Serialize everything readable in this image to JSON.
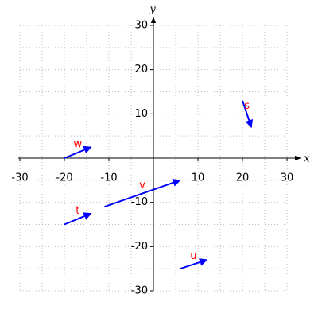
{
  "chart_data": {
    "type": "vector",
    "x_label": "x",
    "y_label": "y",
    "xlim": [
      -30,
      30
    ],
    "ylim": [
      -30,
      30
    ],
    "xticks": [
      -30,
      -20,
      -10,
      10,
      20,
      30
    ],
    "yticks": [
      -30,
      -20,
      -10,
      10,
      20,
      30
    ],
    "xgrid": [
      -30,
      -25,
      -20,
      -15,
      -10,
      -5,
      0,
      5,
      10,
      15,
      20,
      25,
      30
    ],
    "ygrid": [
      -30,
      -25,
      -20,
      -15,
      -10,
      -5,
      0,
      5,
      10,
      15,
      20,
      25,
      30
    ],
    "arrow_color": "#0000ff",
    "label_color": "#ff0000",
    "vectors": [
      {
        "name": "s",
        "x0": 20,
        "y0": 13,
        "x1": 22,
        "y1": 7
      },
      {
        "name": "w",
        "x0": -20,
        "y0": 0,
        "x1": -14,
        "y1": 2.5
      },
      {
        "name": "v",
        "x0": -11,
        "y0": -11,
        "x1": 6,
        "y1": -5
      },
      {
        "name": "t",
        "x0": -20,
        "y0": -15,
        "x1": -14,
        "y1": -12.5
      },
      {
        "name": "u",
        "x0": 6,
        "y0": -25,
        "x1": 12,
        "y1": -23
      }
    ]
  }
}
